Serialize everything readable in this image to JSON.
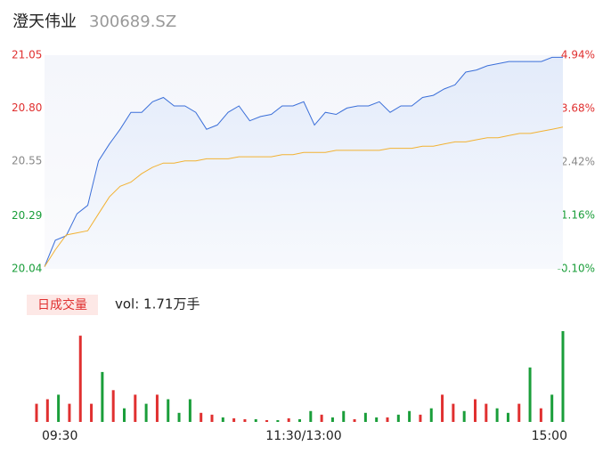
{
  "chart_data": {
    "type": "line",
    "title": "澄天伟业",
    "subtitle": "300689.SZ",
    "categories": [
      "09:30",
      null,
      null,
      null,
      null,
      null,
      null,
      null,
      null,
      null,
      null,
      null,
      null,
      null,
      null,
      null,
      null,
      null,
      null,
      null,
      null,
      null,
      null,
      null,
      "11:30/13:00",
      null,
      null,
      null,
      null,
      null,
      null,
      null,
      null,
      null,
      null,
      null,
      null,
      null,
      null,
      null,
      null,
      null,
      null,
      null,
      null,
      null,
      null,
      null,
      "15:00"
    ],
    "series": [
      {
        "name": "price",
        "color": "#3b6fd9",
        "values": [
          20.05,
          20.175,
          20.196,
          20.3,
          20.34,
          20.55,
          20.63,
          20.7,
          20.78,
          20.78,
          20.83,
          20.85,
          20.81,
          20.81,
          20.78,
          20.7,
          20.72,
          20.78,
          20.81,
          20.74,
          20.76,
          20.77,
          20.81,
          20.81,
          20.83,
          20.72,
          20.78,
          20.77,
          20.8,
          20.81,
          20.81,
          20.83,
          20.78,
          20.81,
          20.81,
          20.85,
          20.86,
          20.89,
          20.91,
          20.97,
          20.98,
          21.0,
          21.01,
          21.02,
          21.02,
          21.02,
          21.02,
          21.04,
          21.04
        ]
      },
      {
        "name": "average",
        "color": "#f2b233",
        "values": [
          20.05,
          20.13,
          20.2,
          20.21,
          20.22,
          20.3,
          20.38,
          20.43,
          20.45,
          20.49,
          20.52,
          20.54,
          20.54,
          20.55,
          20.55,
          20.56,
          20.56,
          20.56,
          20.57,
          20.57,
          20.57,
          20.57,
          20.58,
          20.58,
          20.59,
          20.59,
          20.59,
          20.6,
          20.6,
          20.6,
          20.6,
          20.6,
          20.61,
          20.61,
          20.61,
          20.62,
          20.62,
          20.63,
          20.64,
          20.64,
          20.65,
          20.66,
          20.66,
          20.67,
          20.68,
          20.68,
          20.69,
          20.7,
          20.71
        ]
      }
    ],
    "ylim": [
      20.04,
      21.05
    ],
    "yticks": [
      {
        "value": 21.05,
        "label": "21.05"
      },
      {
        "value": 20.8,
        "label": "20.80"
      },
      {
        "value": 20.55,
        "label": "20.55"
      },
      {
        "value": 20.29,
        "label": "20.29"
      },
      {
        "value": 20.04,
        "label": "20.04"
      }
    ],
    "y2lim": [
      -0.1,
      4.94
    ],
    "y2ticks": [
      {
        "value": 4.94,
        "label": "4.94%"
      },
      {
        "value": 3.68,
        "label": "3.68%"
      },
      {
        "value": 2.42,
        "label": "2.42%"
      },
      {
        "value": 1.16,
        "label": "1.16%"
      },
      {
        "value": -0.1,
        "label": "-0.10%"
      }
    ],
    "tick_colors": [
      "#e03030",
      "#e03030",
      "#888888",
      "#1a9e3a",
      "#1a9e3a"
    ],
    "volume": {
      "legend": "日成交量",
      "summary": "vol: 1.71万手",
      "values": [
        20,
        25,
        30,
        20,
        95,
        20,
        55,
        35,
        15,
        30,
        20,
        30,
        25,
        10,
        25,
        10,
        8,
        5,
        4,
        3,
        3,
        2,
        2,
        4,
        3,
        12,
        8,
        5,
        12,
        3,
        10,
        5,
        5,
        8,
        12,
        8,
        15,
        30,
        20,
        12,
        25,
        20,
        15,
        10,
        20,
        60,
        15,
        30,
        100
      ],
      "colors": [
        "#e03030",
        "#e03030",
        "#1a9e3a",
        "#e03030",
        "#e03030",
        "#e03030",
        "#1a9e3a",
        "#e03030",
        "#1a9e3a",
        "#e03030",
        "#1a9e3a",
        "#e03030",
        "#1a9e3a",
        "#1a9e3a",
        "#1a9e3a",
        "#e03030",
        "#e03030",
        "#1a9e3a",
        "#e03030",
        "#e03030",
        "#1a9e3a",
        "#e03030",
        "#1a9e3a",
        "#e03030",
        "#1a9e3a",
        "#1a9e3a",
        "#e03030",
        "#1a9e3a",
        "#1a9e3a",
        "#e03030",
        "#1a9e3a",
        "#1a9e3a",
        "#e03030",
        "#1a9e3a",
        "#1a9e3a",
        "#e03030",
        "#1a9e3a",
        "#e03030",
        "#e03030",
        "#1a9e3a",
        "#e03030",
        "#e03030",
        "#1a9e3a",
        "#1a9e3a",
        "#e03030",
        "#1a9e3a",
        "#e03030",
        "#1a9e3a",
        "#1a9e3a"
      ]
    }
  }
}
